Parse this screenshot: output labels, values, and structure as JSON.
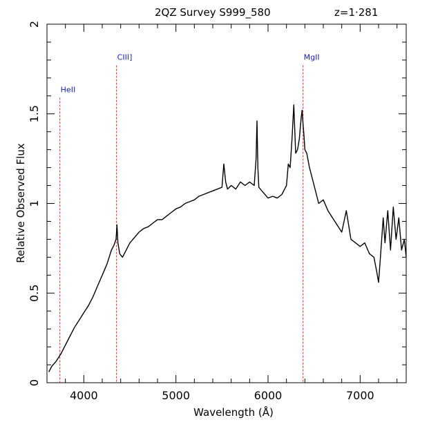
{
  "chart_data": {
    "type": "line",
    "title": "2QZ Survey S999_580",
    "redshift_label": "z=1·281",
    "xlabel": "Wavelength (Å)",
    "ylabel": "Relative Observed Flux",
    "xlim": [
      3600,
      7500
    ],
    "ylim": [
      0,
      2
    ],
    "xticks": [
      "4000",
      "5000",
      "6000",
      "7000"
    ],
    "yticks": [
      "0",
      "0.5",
      "1",
      "1.5",
      "2"
    ],
    "grid": false,
    "line_color": "#000000",
    "marker_color": "#e8202a",
    "label_color": "#1a1acc",
    "emission_lines": [
      {
        "label": "HeII",
        "wavelength": 3740,
        "top": 1.59
      },
      {
        "label": "CIII]",
        "wavelength": 4355,
        "top": 1.77
      },
      {
        "label": "MgII",
        "wavelength": 6380,
        "top": 1.77
      }
    ],
    "series": [
      {
        "x": [
          3620,
          3650,
          3700,
          3750,
          3800,
          3850,
          3900,
          3950,
          4000,
          4050,
          4100,
          4150,
          4200,
          4250,
          4300,
          4330,
          4350,
          4360,
          4370,
          4390,
          4420,
          4460,
          4500,
          4550,
          4600,
          4650,
          4700,
          4750,
          4800,
          4850,
          4900,
          4950,
          5000,
          5050,
          5100,
          5150,
          5200,
          5250,
          5300,
          5350,
          5400,
          5450,
          5500,
          5520,
          5540,
          5560,
          5600,
          5650,
          5700,
          5750,
          5800,
          5850,
          5870,
          5880,
          5890,
          5900,
          5950,
          6000,
          6050,
          6100,
          6150,
          6200,
          6220,
          6240,
          6260,
          6280,
          6300,
          6320,
          6340,
          6360,
          6370,
          6380,
          6390,
          6400,
          6420,
          6450,
          6500,
          6550,
          6600,
          6650,
          6700,
          6750,
          6800,
          6850,
          6900,
          6950,
          7000,
          7050,
          7100,
          7150,
          7180,
          7200,
          7220,
          7250,
          7270,
          7300,
          7330,
          7360,
          7390,
          7420,
          7450,
          7480,
          7500
        ],
        "y": [
          0.06,
          0.09,
          0.12,
          0.16,
          0.21,
          0.26,
          0.31,
          0.35,
          0.39,
          0.43,
          0.48,
          0.54,
          0.6,
          0.66,
          0.74,
          0.77,
          0.8,
          0.88,
          0.78,
          0.72,
          0.7,
          0.74,
          0.78,
          0.81,
          0.84,
          0.86,
          0.87,
          0.89,
          0.91,
          0.91,
          0.93,
          0.95,
          0.97,
          0.98,
          1.0,
          1.01,
          1.02,
          1.04,
          1.05,
          1.06,
          1.07,
          1.08,
          1.09,
          1.22,
          1.12,
          1.08,
          1.1,
          1.08,
          1.12,
          1.1,
          1.12,
          1.1,
          1.25,
          1.46,
          1.2,
          1.09,
          1.06,
          1.03,
          1.04,
          1.03,
          1.05,
          1.1,
          1.22,
          1.2,
          1.36,
          1.55,
          1.28,
          1.3,
          1.36,
          1.48,
          1.52,
          1.44,
          1.38,
          1.3,
          1.28,
          1.2,
          1.1,
          1.0,
          1.02,
          0.96,
          0.92,
          0.88,
          0.84,
          0.96,
          0.8,
          0.78,
          0.76,
          0.78,
          0.72,
          0.7,
          0.62,
          0.56,
          0.7,
          0.92,
          0.78,
          0.96,
          0.74,
          0.98,
          0.8,
          0.92,
          0.74,
          0.8,
          0.7
        ]
      }
    ]
  }
}
